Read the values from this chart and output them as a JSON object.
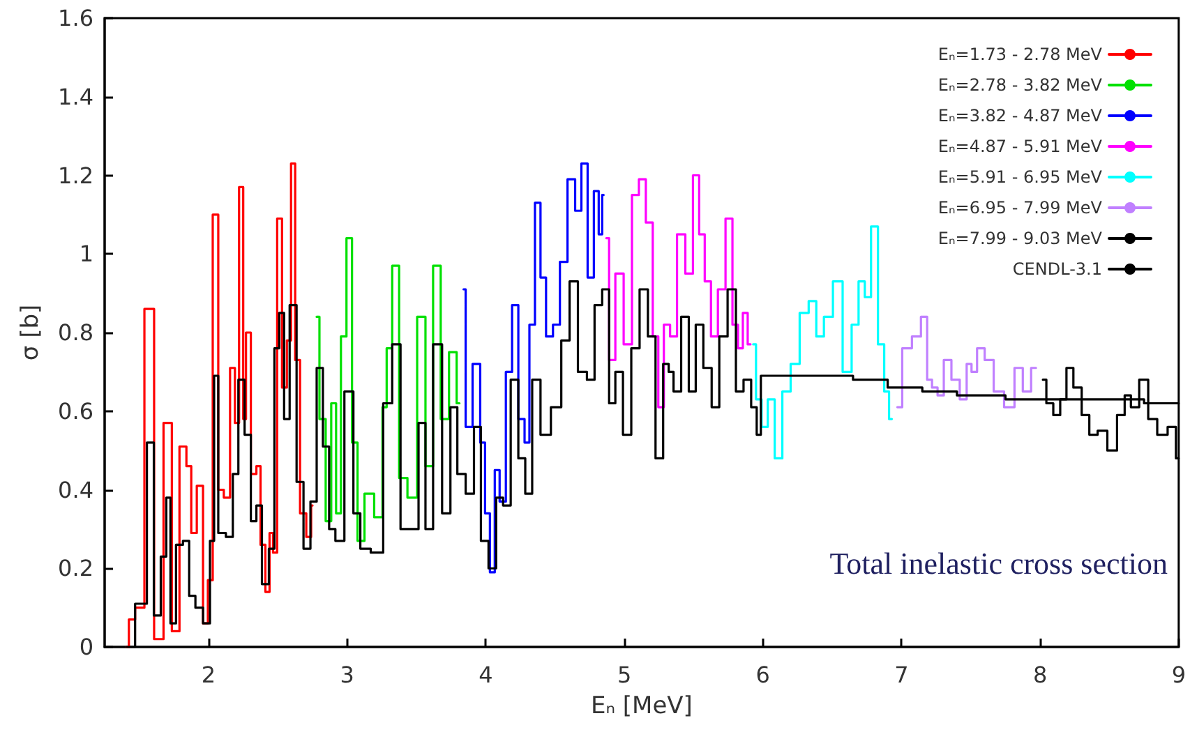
{
  "chart_data": {
    "type": "step",
    "xlabel": "Eₙ [MeV]",
    "ylabel": "σ [b]",
    "xlim": [
      1.25,
      9
    ],
    "xticks": [
      2,
      3,
      4,
      5,
      6,
      7,
      8,
      9
    ],
    "ylim": [
      0,
      1.6
    ],
    "yticks": [
      0,
      0.2,
      0.4,
      0.6,
      0.8,
      1,
      1.2,
      1.4,
      1.6
    ],
    "grid": false,
    "legend": "top right",
    "marker": "none",
    "line_style": "solid",
    "annotations": [
      "Total inelastic cross section"
    ],
    "series": [
      {
        "name": "Eₙ=1.73 - 2.78 MeV",
        "color": "#ff0000",
        "x": [
          1.41,
          1.44,
          1.5,
          1.574,
          1.64,
          1.71,
          1.76,
          1.82,
          1.86,
          1.89,
          1.94,
          1.98,
          2.01,
          2.05,
          2.09,
          2.13,
          2.18,
          2.2,
          2.24,
          2.26,
          2.28,
          2.33,
          2.36,
          2.39,
          2.43,
          2.45,
          2.48,
          2.51,
          2.55,
          2.58,
          2.61,
          2.64,
          2.68,
          2.73,
          2.75
        ],
        "values": [
          0,
          0.07,
          0.1,
          0.86,
          0.02,
          0.57,
          0.04,
          0.51,
          0.46,
          0.29,
          0.41,
          0.06,
          0.17,
          1.1,
          0.4,
          0.38,
          0.71,
          0.57,
          1.17,
          0.58,
          0.8,
          0.44,
          0.46,
          0.26,
          0.14,
          0.29,
          0.24,
          1.09,
          0.66,
          0.78,
          1.23,
          0.73,
          0.34,
          0.28,
          0.36
        ]
      },
      {
        "name": "Eₙ=2.78 - 3.82 MeV",
        "color": "#00e000",
        "x": [
          2.78,
          2.82,
          2.87,
          2.9,
          2.94,
          2.97,
          3.02,
          3.05,
          3.1,
          3.15,
          3.24,
          3.27,
          3.3,
          3.35,
          3.4,
          3.47,
          3.54,
          3.59,
          3.65,
          3.7,
          3.77,
          3.81
        ],
        "values": [
          0.84,
          0.58,
          0.32,
          0.62,
          0.34,
          0.79,
          1.04,
          0.52,
          0.27,
          0.39,
          0.33,
          0.61,
          0.76,
          0.97,
          0.43,
          0.38,
          0.84,
          0.46,
          0.97,
          0.58,
          0.75,
          0.62
        ]
      },
      {
        "name": "Eₙ=3.82 - 4.87 MeV",
        "color": "#0000ff",
        "x": [
          3.84,
          3.87,
          3.94,
          3.98,
          4.01,
          4.05,
          4.08,
          4.12,
          4.17,
          4.21,
          4.26,
          4.3,
          4.33,
          4.38,
          4.41,
          4.46,
          4.51,
          4.56,
          4.62,
          4.67,
          4.71,
          4.76,
          4.8,
          4.83,
          4.85
        ],
        "values": [
          0.91,
          0.56,
          0.72,
          0.52,
          0.34,
          0.19,
          0.45,
          0.37,
          0.7,
          0.87,
          0.58,
          0.52,
          0.82,
          1.13,
          0.94,
          0.79,
          0.82,
          0.98,
          1.19,
          1.11,
          1.23,
          0.94,
          1.16,
          1.05,
          1.15
        ]
      },
      {
        "name": "Eₙ=4.87 - 5.91 MeV",
        "color": "#ff00ff",
        "x": [
          4.87,
          4.91,
          4.96,
          5.03,
          5.08,
          5.13,
          5.18,
          5.23,
          5.26,
          5.31,
          5.35,
          5.41,
          5.47,
          5.52,
          5.56,
          5.6,
          5.65,
          5.7,
          5.76,
          5.8,
          5.84,
          5.87,
          5.91
        ],
        "values": [
          1.04,
          0.73,
          0.95,
          0.77,
          1.15,
          1.19,
          1.08,
          0.79,
          0.61,
          0.82,
          0.79,
          1.05,
          0.95,
          1.2,
          1.05,
          0.93,
          0.79,
          0.91,
          1.09,
          0.82,
          0.76,
          0.85,
          0.77
        ]
      },
      {
        "name": "Eₙ=5.91 - 6.95 MeV",
        "color": "#00ffff",
        "x": [
          5.93,
          5.97,
          6.01,
          6.06,
          6.11,
          6.17,
          6.23,
          6.3,
          6.36,
          6.41,
          6.47,
          6.54,
          6.61,
          6.67,
          6.71,
          6.76,
          6.8,
          6.86,
          6.89,
          6.93
        ],
        "values": [
          0.77,
          0.63,
          0.56,
          0.63,
          0.48,
          0.65,
          0.72,
          0.85,
          0.88,
          0.79,
          0.84,
          0.93,
          0.7,
          0.82,
          0.93,
          0.89,
          1.07,
          0.77,
          0.65,
          0.58
        ]
      },
      {
        "name": "Eₙ=6.95 - 7.99 MeV",
        "color": "#c080ff",
        "x": [
          6.97,
          7.04,
          7.11,
          7.17,
          7.2,
          7.24,
          7.28,
          7.33,
          7.39,
          7.45,
          7.49,
          7.52,
          7.57,
          7.63,
          7.7,
          7.78,
          7.85,
          7.9,
          7.97
        ],
        "values": [
          0.61,
          0.76,
          0.79,
          0.84,
          0.68,
          0.66,
          0.64,
          0.73,
          0.68,
          0.63,
          0.72,
          0.7,
          0.76,
          0.73,
          0.65,
          0.61,
          0.71,
          0.65,
          0.71
        ]
      },
      {
        "name": "Eₙ=7.99 - 9.03 MeV",
        "color": "#000000",
        "x": [
          8.02,
          8.07,
          8.12,
          8.17,
          8.21,
          8.27,
          8.33,
          8.38,
          8.45,
          8.52,
          8.59,
          8.63,
          8.68,
          8.75,
          8.81,
          8.88,
          8.96,
          9.0
        ],
        "values": [
          0.68,
          0.62,
          0.59,
          0.63,
          0.71,
          0.66,
          0.59,
          0.54,
          0.55,
          0.5,
          0.59,
          0.64,
          0.61,
          0.68,
          0.58,
          0.54,
          0.56,
          0.48
        ]
      },
      {
        "name": "CENDL-3.1",
        "color": "#000000",
        "x": [
          1.41,
          1.53,
          1.58,
          1.63,
          1.68,
          1.71,
          1.74,
          1.79,
          1.84,
          1.88,
          1.93,
          1.99,
          2.03,
          2.05,
          2.09,
          2.16,
          2.19,
          2.24,
          2.28,
          2.33,
          2.36,
          2.41,
          2.46,
          2.49,
          2.53,
          2.56,
          2.61,
          2.66,
          2.71,
          2.76,
          2.8,
          2.85,
          2.89,
          2.94,
          3.02,
          3.07,
          3.12,
          3.22,
          3.3,
          3.35,
          3.42,
          3.49,
          3.54,
          3.59,
          3.65,
          3.72,
          3.77,
          3.82,
          3.89,
          3.94,
          3.99,
          4.05,
          4.1,
          4.15,
          4.21,
          4.26,
          4.31,
          4.36,
          4.43,
          4.51,
          4.58,
          4.63,
          4.7,
          4.76,
          4.81,
          4.87,
          4.91,
          4.96,
          5.02,
          5.08,
          5.14,
          5.2,
          5.25,
          5.31,
          5.33,
          5.38,
          5.44,
          5.49,
          5.54,
          5.6,
          5.66,
          5.71,
          5.78,
          5.83,
          5.89,
          5.94,
          5.97,
          6.0,
          6.5,
          6.8,
          7.0,
          7.3,
          7.5,
          8.0,
          8.5,
          9.0
        ],
        "values": [
          0,
          0.11,
          0.52,
          0.08,
          0.23,
          0.38,
          0.06,
          0.26,
          0.27,
          0.13,
          0.1,
          0.06,
          0.27,
          0.69,
          0.29,
          0.28,
          0.44,
          0.68,
          0.54,
          0.32,
          0.36,
          0.16,
          0.25,
          0.76,
          0.85,
          0.58,
          0.87,
          0.42,
          0.25,
          0.37,
          0.71,
          0.51,
          0.3,
          0.27,
          0.65,
          0.34,
          0.25,
          0.24,
          0.62,
          0.77,
          0.3,
          0.3,
          0.57,
          0.3,
          0.77,
          0.34,
          0.61,
          0.44,
          0.39,
          0.56,
          0.27,
          0.2,
          0.38,
          0.36,
          0.68,
          0.48,
          0.39,
          0.68,
          0.54,
          0.61,
          0.78,
          0.93,
          0.7,
          0.68,
          0.87,
          0.91,
          0.62,
          0.7,
          0.54,
          0.76,
          0.91,
          0.79,
          0.48,
          0.72,
          0.7,
          0.65,
          0.84,
          0.65,
          0.82,
          0.71,
          0.61,
          0.79,
          0.91,
          0.65,
          0.68,
          0.61,
          0.54,
          0.69,
          0.69,
          0.68,
          0.66,
          0.65,
          0.64,
          0.63,
          0.63,
          0.62
        ]
      }
    ]
  }
}
